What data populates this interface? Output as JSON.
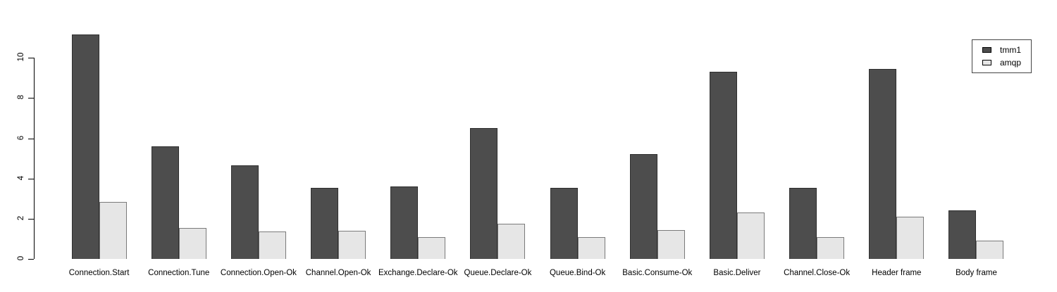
{
  "chart_data": {
    "type": "bar",
    "title": "",
    "xlabel": "",
    "ylabel": "",
    "categories": [
      "Connection.Start",
      "Connection.Tune",
      "Connection.Open-Ok",
      "Channel.Open-Ok",
      "Exchange.Declare-Ok",
      "Queue.Declare-Ok",
      "Queue.Bind-Ok",
      "Basic.Consume-Ok",
      "Basic.Deliver",
      "Channel.Close-Ok",
      "Header frame",
      "Body frame"
    ],
    "series": [
      {
        "name": "tmm1",
        "fill": "#4D4D4D",
        "border": "#2E2E2E",
        "values": [
          11.15,
          5.6,
          4.65,
          3.55,
          3.6,
          6.5,
          3.55,
          5.2,
          9.3,
          3.55,
          9.45,
          2.4
        ]
      },
      {
        "name": "amqp",
        "fill": "#E6E6E6",
        "border": "#7A7A7A",
        "values": [
          2.85,
          1.55,
          1.35,
          1.4,
          1.1,
          1.75,
          1.1,
          1.45,
          2.3,
          1.1,
          2.1,
          0.9
        ]
      }
    ],
    "yticks": [
      0,
      2,
      4,
      6,
      8,
      10
    ],
    "ylim": [
      0,
      11.2
    ],
    "grid": false,
    "legend_position": "top-right",
    "axis_color": "#000000",
    "background": "#FFFFFF"
  }
}
